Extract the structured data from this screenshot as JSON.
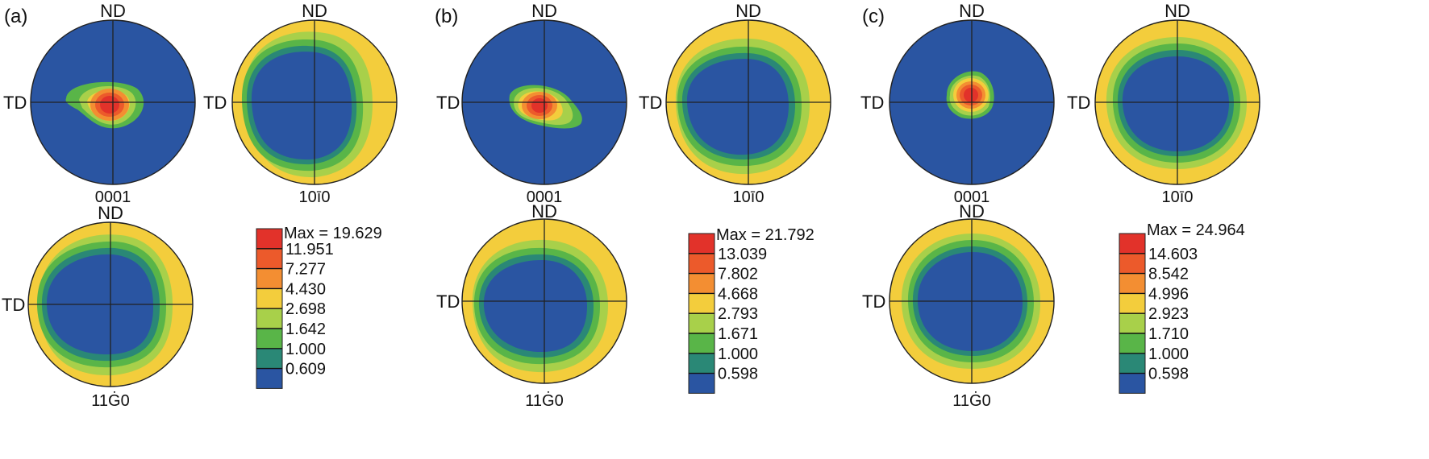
{
  "colors": {
    "level0": "#2a55a2",
    "level1": "#2a8876",
    "level2": "#59b548",
    "level3": "#a8d04a",
    "level4": "#f3cd3c",
    "level5": "#f38e32",
    "level6": "#ec5a2b",
    "level7": "#e2322a",
    "axis": "#222222"
  },
  "direction_labels": {
    "top": "ND",
    "left": "TD"
  },
  "plane_labels": {
    "basal": "0001",
    "prism": "10ī0",
    "pyramidal": "11Ġ0"
  },
  "panels": [
    {
      "label": "(a)",
      "legend": {
        "max_label": "Max = 19.629",
        "levels": [
          "11.951",
          "7.277",
          "4.430",
          "2.698",
          "1.642",
          "1.000",
          "0.609"
        ]
      }
    },
    {
      "label": "(b)",
      "legend": {
        "max_label": "Max = 21.792",
        "levels": [
          "13.039",
          "7.802",
          "4.668",
          "2.793",
          "1.671",
          "1.000",
          "0.598"
        ]
      }
    },
    {
      "label": "(c)",
      "legend": {
        "max_label": "Max = 24.964",
        "levels": [
          "14.603",
          "8.542",
          "4.996",
          "2.923",
          "1.710",
          "1.000",
          "0.598"
        ]
      }
    }
  ]
}
